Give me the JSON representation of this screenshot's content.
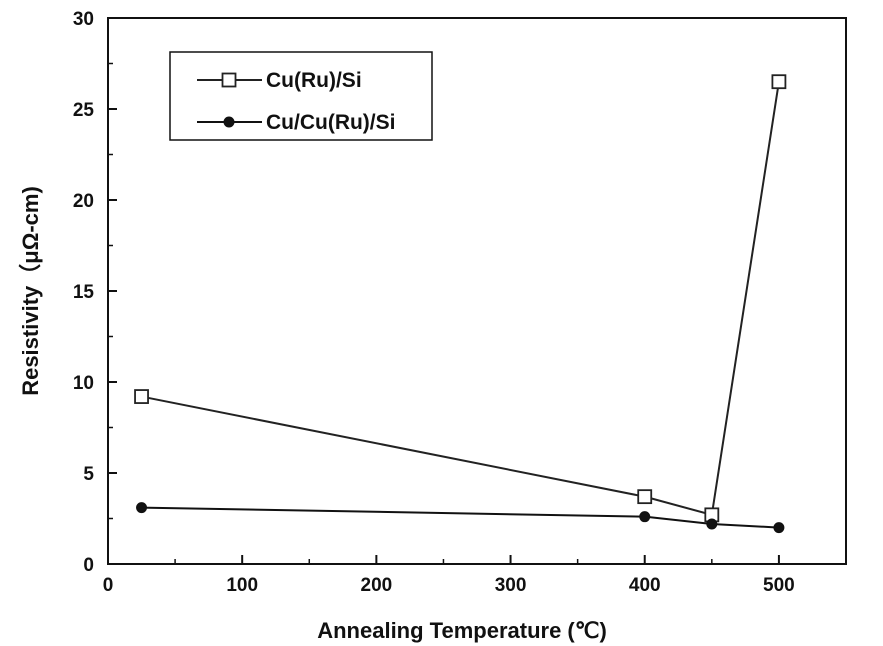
{
  "chart_data": {
    "type": "line",
    "xlabel": "Annealing Temperature (℃)",
    "ylabel": "Resistivity（μΩ-cm)",
    "xlim": [
      0,
      550
    ],
    "ylim": [
      0,
      30
    ],
    "x_ticks": [
      0,
      100,
      200,
      300,
      400,
      500
    ],
    "y_ticks": [
      0,
      5,
      10,
      15,
      20,
      25,
      30
    ],
    "grid": false,
    "legend_position": "top-left",
    "series": [
      {
        "name": "Cu(Ru)/Si",
        "marker": "open-square",
        "color": "#222222",
        "x": [
          25,
          400,
          450,
          500
        ],
        "y": [
          9.2,
          3.7,
          2.7,
          26.5
        ]
      },
      {
        "name": "Cu/Cu(Ru)/Si",
        "marker": "filled-circle",
        "color": "#111111",
        "x": [
          25,
          400,
          450,
          500
        ],
        "y": [
          3.1,
          2.6,
          2.2,
          2.0
        ]
      }
    ]
  }
}
